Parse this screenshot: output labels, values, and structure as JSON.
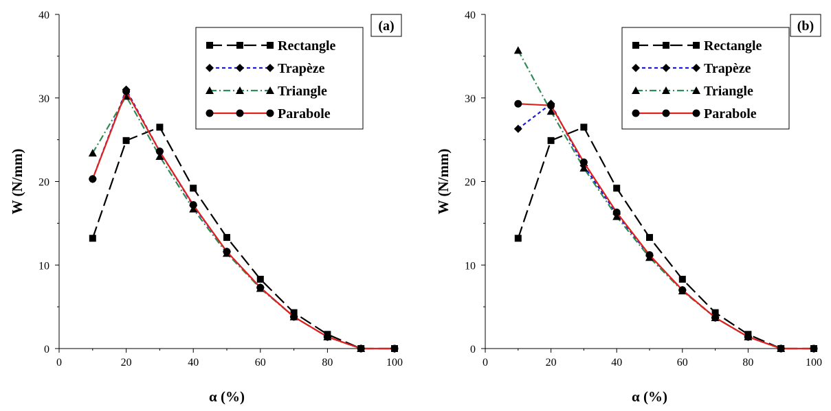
{
  "chart_data": [
    {
      "type": "line",
      "panel_label": "(a)",
      "xlabel": "α (%)",
      "ylabel": "W (N/mm)",
      "xlim": [
        0,
        100
      ],
      "ylim": [
        0,
        40
      ],
      "xticks": [
        0,
        20,
        40,
        60,
        80,
        100
      ],
      "yticks": [
        0,
        10,
        20,
        30,
        40
      ],
      "legend_position": "top-right",
      "grid": false,
      "series": [
        {
          "name": "Rectangle",
          "color": "#000000",
          "dash": "long-dash",
          "marker": "square",
          "x": [
            10,
            20,
            30,
            40,
            50,
            60,
            70,
            80,
            90,
            100
          ],
          "y": [
            13.2,
            24.9,
            26.5,
            19.2,
            13.3,
            8.3,
            4.3,
            1.7,
            0,
            0
          ]
        },
        {
          "name": "Trapèze",
          "color": "#1a1adb",
          "dash": "short-dash",
          "marker": "diamond",
          "x": [
            10,
            20,
            30,
            40,
            50,
            60,
            70,
            80,
            90
          ],
          "y": [
            20.3,
            31.0,
            23.6,
            17.1,
            11.6,
            7.3,
            3.8,
            1.4,
            0
          ]
        },
        {
          "name": "Triangle",
          "color": "#2e8b57",
          "dash": "dash-dot",
          "marker": "triangle",
          "x": [
            10,
            20,
            30,
            40,
            50,
            60,
            70,
            80,
            90
          ],
          "y": [
            23.4,
            30.2,
            23.0,
            16.7,
            11.4,
            7.2,
            3.8,
            1.4,
            0
          ]
        },
        {
          "name": "Parabole",
          "color": "#e0201c",
          "dash": "solid",
          "marker": "circle",
          "x": [
            10,
            20,
            30,
            40,
            50,
            60,
            70,
            80,
            90,
            100
          ],
          "y": [
            20.3,
            30.8,
            23.6,
            17.2,
            11.6,
            7.3,
            3.8,
            1.4,
            0,
            0
          ]
        }
      ]
    },
    {
      "type": "line",
      "panel_label": "(b)",
      "xlabel": "α (%)",
      "ylabel": "W (N/mm)",
      "xlim": [
        0,
        100
      ],
      "ylim": [
        0,
        40
      ],
      "xticks": [
        0,
        20,
        40,
        60,
        80,
        100
      ],
      "yticks": [
        0,
        10,
        20,
        30,
        40
      ],
      "legend_position": "top-right",
      "grid": false,
      "series": [
        {
          "name": "Rectangle",
          "color": "#000000",
          "dash": "long-dash",
          "marker": "square",
          "x": [
            10,
            20,
            30,
            40,
            50,
            60,
            70,
            80,
            90,
            100
          ],
          "y": [
            13.2,
            24.9,
            26.5,
            19.2,
            13.3,
            8.3,
            4.3,
            1.7,
            0,
            0
          ]
        },
        {
          "name": "Trapèze",
          "color": "#1a1adb",
          "dash": "short-dash",
          "marker": "diamond",
          "x": [
            10,
            20,
            30,
            40,
            50,
            60,
            70,
            80,
            90
          ],
          "y": [
            26.3,
            29.3,
            21.9,
            16.1,
            11.1,
            7.0,
            3.7,
            1.4,
            0
          ]
        },
        {
          "name": "Triangle",
          "color": "#2e8b57",
          "dash": "dash-dot",
          "marker": "triangle",
          "x": [
            10,
            20,
            30,
            40,
            50,
            60,
            70,
            80,
            90
          ],
          "y": [
            35.7,
            28.4,
            21.6,
            15.8,
            10.9,
            6.9,
            3.7,
            1.4,
            0
          ]
        },
        {
          "name": "Parabole",
          "color": "#e0201c",
          "dash": "solid",
          "marker": "circle",
          "x": [
            10,
            20,
            30,
            40,
            50,
            60,
            70,
            80,
            90,
            100
          ],
          "y": [
            29.3,
            29.1,
            22.3,
            16.3,
            11.2,
            7.0,
            3.7,
            1.4,
            0,
            0
          ]
        }
      ]
    }
  ]
}
